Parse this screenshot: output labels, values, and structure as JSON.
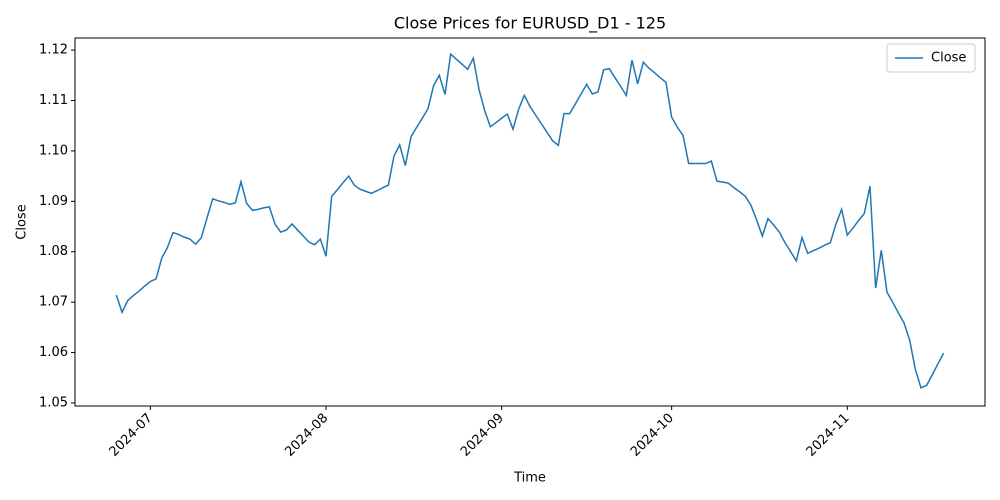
{
  "chart_data": {
    "type": "line",
    "title": "Close Prices for EURUSD_D1 - 125",
    "x_label": "Time",
    "y_label": "Close",
    "legend": "upper right",
    "series": [
      {
        "name": "Close",
        "color": "#1f77b4",
        "values": [
          1.0714,
          1.068,
          1.0703,
          1.0713,
          1.0722,
          1.0732,
          1.0741,
          1.0746,
          1.0787,
          1.0808,
          1.0838,
          1.0834,
          1.0829,
          1.0825,
          1.0815,
          1.0828,
          1.0867,
          1.0905,
          1.0901,
          1.0898,
          1.0894,
          1.0897,
          1.0939,
          1.0896,
          1.0882,
          1.0884,
          1.0887,
          1.0889,
          1.0855,
          1.0839,
          1.0843,
          1.0855,
          1.0843,
          1.0831,
          1.0819,
          1.0814,
          1.0825,
          1.0791,
          1.091,
          1.0923,
          1.0937,
          1.095,
          1.0932,
          1.0924,
          1.092,
          1.0916,
          1.0921,
          1.0927,
          1.0932,
          1.099,
          1.1012,
          1.0971,
          1.1028,
          1.1047,
          1.1065,
          1.1084,
          1.113,
          1.115,
          1.1112,
          1.1192,
          1.1182,
          1.1172,
          1.1162,
          1.1184,
          1.1122,
          1.108,
          1.1048,
          1.1056,
          1.1065,
          1.1073,
          1.1043,
          1.1083,
          1.111,
          1.1088,
          1.1071,
          1.1054,
          1.1037,
          1.102,
          1.1011,
          1.1074,
          1.1074,
          1.1093,
          1.1113,
          1.1132,
          1.1113,
          1.1117,
          1.1161,
          1.1163,
          1.1145,
          1.1128,
          1.111,
          1.118,
          1.1133,
          1.1176,
          1.1164,
          1.1155,
          1.1145,
          1.1136,
          1.1067,
          1.1047,
          1.1031,
          1.0975,
          1.0975,
          1.0975,
          1.0975,
          1.098,
          1.094,
          1.0938,
          1.0936,
          1.0927,
          1.0919,
          1.091,
          1.0892,
          1.0863,
          1.0831,
          1.0866,
          1.0853,
          1.0839,
          1.0818,
          1.08,
          1.0782,
          1.0828,
          1.0797,
          1.0802,
          1.0807,
          1.0813,
          1.0818,
          1.0855,
          1.0884,
          1.0833,
          1.0847,
          1.0862,
          1.0876,
          1.093,
          1.0728,
          1.0803,
          1.072,
          1.07,
          1.0679,
          1.0659,
          1.0625,
          1.0567,
          1.053,
          1.0535,
          1.0556,
          1.0578,
          1.0599
        ]
      }
    ],
    "xlim": [
      -7.3,
      153.3
    ],
    "xticks": [
      {
        "value": 6,
        "label": "2024-07"
      },
      {
        "value": 37,
        "label": "2024-08"
      },
      {
        "value": 68,
        "label": "2024-09"
      },
      {
        "value": 98,
        "label": "2024-10"
      },
      {
        "value": 129,
        "label": "2024-11"
      }
    ],
    "ylim": [
      1.0494,
      1.1224
    ],
    "yticks": [
      1.05,
      1.06,
      1.07,
      1.08,
      1.09,
      {
        "value": 1.1,
        "label": "1.10"
      },
      1.11,
      1.12
    ]
  }
}
